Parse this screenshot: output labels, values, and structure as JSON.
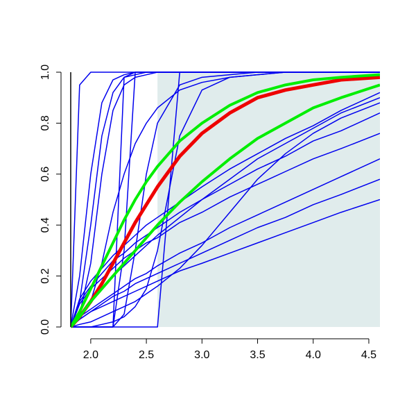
{
  "chart_data": {
    "type": "line",
    "x": [
      1.82,
      1.9,
      2.0,
      2.1,
      2.2,
      2.3,
      2.4,
      2.5,
      2.6,
      2.8,
      3.0,
      3.25,
      3.5,
      3.75,
      4.0,
      4.25,
      4.6
    ],
    "xlim": [
      1.82,
      4.6
    ],
    "xticks": [
      {
        "value": 2,
        "label": "2.0"
      },
      2.5,
      {
        "value": 3,
        "label": "3.0"
      },
      3.5,
      {
        "value": 4,
        "label": "4.0"
      },
      4.5
    ],
    "ylim": [
      0,
      1
    ],
    "yticks": [
      {
        "value": 0,
        "label": "0.0"
      },
      0.2,
      0.4,
      0.6,
      0.8,
      {
        "value": 1,
        "label": "1.0"
      }
    ],
    "shade": {
      "xlim": [
        2.6,
        4.6
      ],
      "color": "#e0ecec"
    },
    "series": [
      {
        "color": "#0000ee",
        "width": 1.5,
        "values": [
          0,
          0.95,
          1,
          1,
          1,
          1,
          1,
          1,
          1,
          1,
          1,
          1,
          1,
          1,
          1,
          1,
          1
        ]
      },
      {
        "color": "#0000ee",
        "width": 1.5,
        "values": [
          0,
          0.2,
          0.6,
          0.88,
          0.97,
          0.99,
          1,
          1,
          1,
          1,
          1,
          1,
          1,
          1,
          1,
          1,
          1
        ]
      },
      {
        "color": "#0000ee",
        "width": 1.5,
        "values": [
          0,
          0.1,
          0.4,
          0.75,
          0.92,
          0.98,
          0.99,
          1,
          1,
          1,
          1,
          1,
          1,
          1,
          1,
          1,
          1
        ]
      },
      {
        "color": "#0000ee",
        "width": 1.5,
        "values": [
          0,
          0.05,
          0.25,
          0.6,
          0.85,
          0.95,
          0.98,
          0.99,
          1,
          1,
          1,
          1,
          1,
          1,
          1,
          1,
          1
        ]
      },
      {
        "color": "#0000ee",
        "width": 1.5,
        "values": [
          0,
          0,
          0,
          0,
          0,
          0.98,
          1,
          1,
          1,
          1,
          1,
          1,
          1,
          1,
          1,
          1,
          1
        ]
      },
      {
        "color": "#0000ee",
        "width": 1.5,
        "values": [
          0,
          0,
          0,
          0,
          0,
          0.3,
          1,
          1,
          1,
          1,
          1,
          1,
          1,
          1,
          1,
          1,
          1
        ]
      },
      {
        "color": "#0000ee",
        "width": 1.5,
        "values": [
          0,
          0,
          0,
          0,
          0,
          0,
          0,
          0,
          0,
          1,
          1,
          1,
          1,
          1,
          1,
          1,
          1
        ]
      },
      {
        "color": "#0000ee",
        "width": 1.5,
        "values": [
          0,
          0,
          0,
          0.01,
          0.02,
          0.04,
          0.08,
          0.15,
          0.3,
          0.75,
          0.93,
          0.98,
          0.99,
          1,
          1,
          1,
          1
        ]
      },
      {
        "color": "#0000ee",
        "width": 1.5,
        "values": [
          0,
          0,
          0,
          0,
          0,
          0.05,
          0.3,
          0.6,
          0.8,
          0.95,
          0.98,
          0.99,
          1,
          1,
          1,
          1,
          1
        ]
      },
      {
        "color": "#0000ee",
        "width": 1.5,
        "values": [
          0,
          0.03,
          0.1,
          0.25,
          0.45,
          0.6,
          0.72,
          0.8,
          0.86,
          0.93,
          0.96,
          0.98,
          0.99,
          1,
          1,
          1,
          1
        ]
      },
      {
        "color": "#0000ee",
        "width": 1.5,
        "values": [
          0,
          0.03,
          0.06,
          0.08,
          0.1,
          0.12,
          0.14,
          0.16,
          0.18,
          0.22,
          0.25,
          0.29,
          0.33,
          0.37,
          0.41,
          0.45,
          0.5
        ]
      },
      {
        "color": "#0000ee",
        "width": 1.5,
        "values": [
          0,
          0.03,
          0.06,
          0.09,
          0.12,
          0.14,
          0.17,
          0.19,
          0.21,
          0.25,
          0.29,
          0.34,
          0.39,
          0.43,
          0.48,
          0.52,
          0.58
        ]
      },
      {
        "color": "#0000ee",
        "width": 1.5,
        "values": [
          0,
          0.04,
          0.07,
          0.1,
          0.13,
          0.16,
          0.19,
          0.21,
          0.24,
          0.29,
          0.33,
          0.39,
          0.44,
          0.49,
          0.54,
          0.59,
          0.66
        ]
      },
      {
        "color": "#0000ee",
        "width": 1.5,
        "values": [
          0,
          0.09,
          0.15,
          0.19,
          0.23,
          0.27,
          0.3,
          0.33,
          0.35,
          0.41,
          0.45,
          0.51,
          0.56,
          0.61,
          0.66,
          0.7,
          0.76
        ]
      },
      {
        "color": "#0000ee",
        "width": 1.5,
        "values": [
          0,
          0.1,
          0.16,
          0.21,
          0.26,
          0.29,
          0.33,
          0.36,
          0.39,
          0.45,
          0.5,
          0.56,
          0.62,
          0.67,
          0.73,
          0.77,
          0.84
        ]
      },
      {
        "color": "#0000ee",
        "width": 1.5,
        "values": [
          0,
          0.11,
          0.18,
          0.23,
          0.28,
          0.32,
          0.36,
          0.4,
          0.43,
          0.49,
          0.55,
          0.62,
          0.68,
          0.74,
          0.79,
          0.85,
          0.92
        ]
      },
      {
        "color": "#0000ee",
        "width": 1.5,
        "values": [
          0,
          0.01,
          0.02,
          0.04,
          0.06,
          0.08,
          0.1,
          0.13,
          0.16,
          0.23,
          0.32,
          0.45,
          0.58,
          0.68,
          0.76,
          0.82,
          0.88
        ]
      },
      {
        "color": "#0000ee",
        "width": 1.5,
        "values": [
          0,
          0.05,
          0.1,
          0.15,
          0.2,
          0.24,
          0.28,
          0.32,
          0.36,
          0.43,
          0.5,
          0.58,
          0.66,
          0.72,
          0.78,
          0.84,
          0.9
        ]
      },
      {
        "color": "#ee0000",
        "width": 5,
        "values": [
          0,
          0.04,
          0.1,
          0.17,
          0.25,
          0.33,
          0.41,
          0.48,
          0.55,
          0.67,
          0.76,
          0.84,
          0.9,
          0.93,
          0.95,
          0.97,
          0.98
        ]
      },
      {
        "color": "#00ee00",
        "width": 4,
        "values": [
          0,
          0.06,
          0.15,
          0.24,
          0.33,
          0.42,
          0.5,
          0.57,
          0.63,
          0.73,
          0.8,
          0.87,
          0.92,
          0.95,
          0.97,
          0.98,
          0.99
        ]
      },
      {
        "color": "#00ee00",
        "width": 4,
        "values": [
          0,
          0.04,
          0.1,
          0.15,
          0.2,
          0.25,
          0.3,
          0.35,
          0.4,
          0.49,
          0.57,
          0.66,
          0.74,
          0.8,
          0.86,
          0.9,
          0.95
        ]
      }
    ]
  }
}
